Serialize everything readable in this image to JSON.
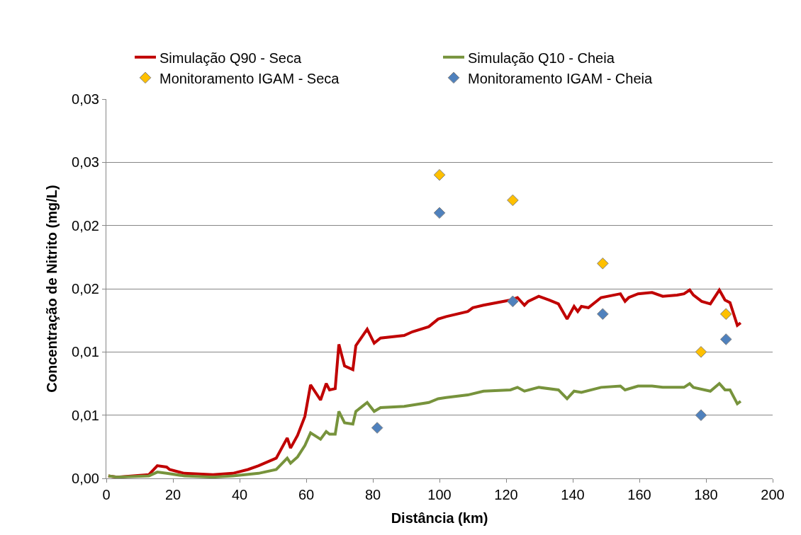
{
  "chart_data": {
    "type": "line",
    "xlabel": "Distância (km)",
    "ylabel": "Concentração de Nitrito (mg/L)",
    "xlim": [
      0,
      200
    ],
    "xticks": [
      0,
      20,
      40,
      60,
      80,
      100,
      120,
      140,
      160,
      180,
      200
    ],
    "ylim": [
      0,
      0.03
    ],
    "yticks": [
      {
        "value": 0,
        "label": "0,00"
      },
      {
        "value": 0.005,
        "label": "0,01"
      },
      {
        "value": 0.01,
        "label": "0,01"
      },
      {
        "value": 0.015,
        "label": "0,02"
      },
      {
        "value": 0.02,
        "label": "0,02"
      },
      {
        "value": 0.025,
        "label": "0,03"
      },
      {
        "value": 0.03,
        "label": "0,03"
      }
    ],
    "grid": "y",
    "legend": "top",
    "line_style": "solid",
    "series": [
      {
        "name": "Simulação Q90 - Seca",
        "marker": "none",
        "color": "#c00000",
        "x": [
          0.6,
          3.2,
          12.8,
          15.3,
          18.1,
          19,
          23.4,
          32,
          38,
          42.5,
          45.7,
          51,
          54.3,
          55.3,
          57.4,
          59.6,
          61.3,
          64.3,
          66,
          67,
          68.7,
          69.8,
          71.5,
          74,
          74.9,
          78.3,
          80.4,
          82.3,
          89.4,
          91.9,
          96.8,
          99.6,
          102,
          108.5,
          110,
          113.2,
          121.3,
          123.4,
          125.5,
          126.6,
          129.8,
          133,
          135.7,
          138.3,
          140.4,
          141.5,
          142.6,
          144.7,
          148.5,
          154.3,
          155.7,
          156.8,
          159.6,
          163.8,
          167,
          171.3,
          173.4,
          175.1,
          176.2,
          178.7,
          181.3,
          184,
          185.7,
          187.2,
          189.4,
          190.4
        ],
        "values": [
          0.0002,
          0.0001,
          0.0003,
          0.001,
          0.0009,
          0.0007,
          0.0004,
          0.0003,
          0.0004,
          0.0007,
          0.001,
          0.0016,
          0.0032,
          0.0024,
          0.0034,
          0.0049,
          0.0074,
          0.0062,
          0.0075,
          0.007,
          0.0071,
          0.0106,
          0.0089,
          0.0086,
          0.0105,
          0.0118,
          0.0107,
          0.0111,
          0.0113,
          0.0116,
          0.012,
          0.0126,
          0.0128,
          0.0132,
          0.0135,
          0.0137,
          0.0141,
          0.0143,
          0.0137,
          0.014,
          0.0144,
          0.0141,
          0.0138,
          0.0126,
          0.0136,
          0.0132,
          0.0136,
          0.0135,
          0.0143,
          0.0146,
          0.014,
          0.0143,
          0.0146,
          0.0147,
          0.0144,
          0.0145,
          0.0146,
          0.0149,
          0.0145,
          0.014,
          0.0138,
          0.0149,
          0.0141,
          0.0139,
          0.0121,
          0.0123
        ]
      },
      {
        "name": "Simulação Q10 - Cheia",
        "marker": "none",
        "color": "#77933c",
        "x": [
          0.6,
          3.2,
          12.8,
          15.3,
          18.1,
          23.4,
          32,
          38,
          45.7,
          51,
          54.3,
          55.3,
          57.4,
          59.6,
          61.3,
          64.3,
          66,
          67,
          68.7,
          69.8,
          71.5,
          74,
          74.9,
          78.3,
          80.4,
          82.3,
          89.4,
          96.8,
          99.6,
          102,
          108.5,
          113.2,
          121.3,
          123.4,
          125.5,
          129.8,
          135.7,
          138.3,
          140.4,
          142.6,
          148.5,
          154.3,
          155.7,
          159.6,
          163.8,
          167,
          173.4,
          175.1,
          176.2,
          181.3,
          184,
          185.7,
          187.2,
          189.4,
          190.4
        ],
        "values": [
          0.0002,
          0.0001,
          0.0002,
          0.0005,
          0.0004,
          0.0002,
          0.0001,
          0.0002,
          0.0004,
          0.0007,
          0.0016,
          0.0012,
          0.0017,
          0.0026,
          0.0036,
          0.0031,
          0.0037,
          0.0035,
          0.0035,
          0.0053,
          0.0044,
          0.0043,
          0.0053,
          0.006,
          0.0053,
          0.0056,
          0.0057,
          0.006,
          0.0063,
          0.0064,
          0.0066,
          0.0069,
          0.007,
          0.0072,
          0.0069,
          0.0072,
          0.007,
          0.0063,
          0.0069,
          0.0068,
          0.0072,
          0.0073,
          0.007,
          0.0073,
          0.0073,
          0.0072,
          0.0072,
          0.0075,
          0.0072,
          0.0069,
          0.0075,
          0.007,
          0.007,
          0.0059,
          0.0061
        ]
      },
      {
        "name": "Monitoramento IGAM - Seca",
        "type": "scatter",
        "marker": "diamond",
        "color": "#ffc000",
        "x": [
          100,
          122,
          149,
          178.5,
          186
        ],
        "values": [
          0.024,
          0.022,
          0.017,
          0.01,
          0.013
        ]
      },
      {
        "name": "Monitoramento IGAM - Cheia",
        "type": "scatter",
        "marker": "diamond",
        "color": "#4f81bd",
        "x": [
          81.3,
          100,
          122,
          149,
          178.5,
          186
        ],
        "values": [
          0.004,
          0.021,
          0.014,
          0.013,
          0.005,
          0.011
        ]
      }
    ]
  }
}
